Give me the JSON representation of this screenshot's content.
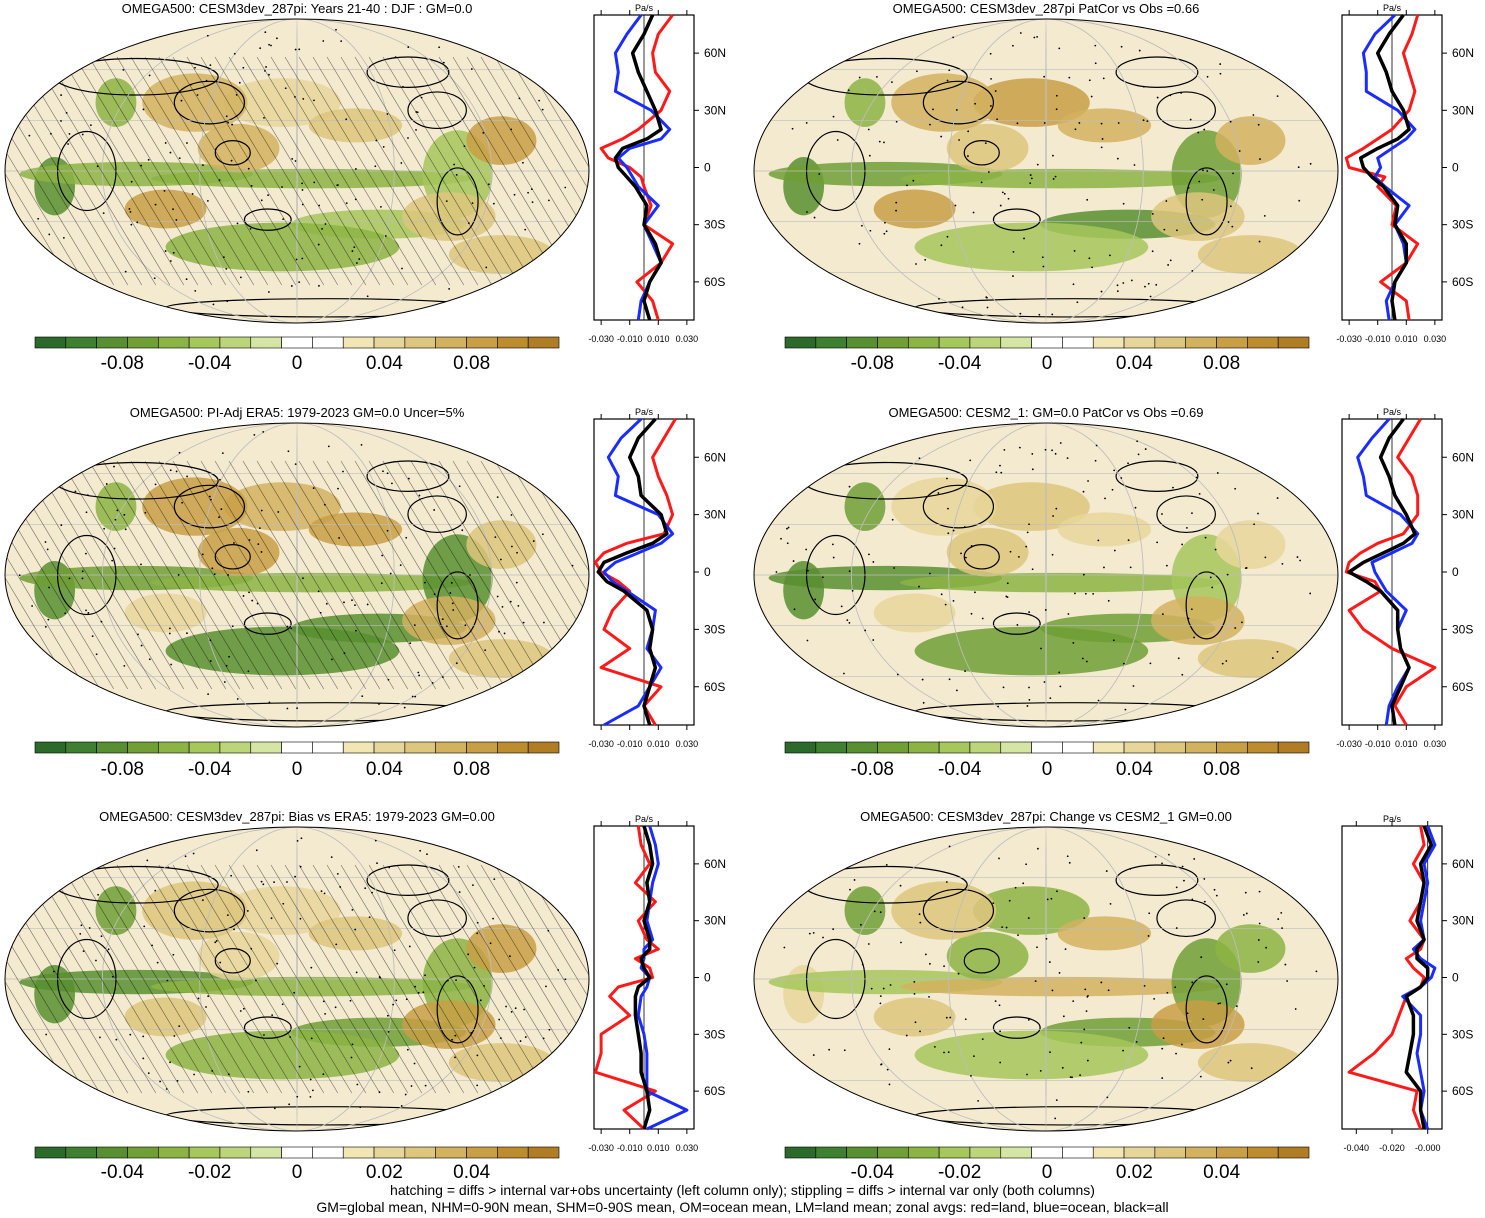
{
  "colors": {
    "land": "#c8c8c8",
    "red": "#ff1a1a",
    "blue": "#1a2cff",
    "black": "#000000",
    "colormap": [
      "#2b6a2b",
      "#3e7f30",
      "#588f30",
      "#6f9f35",
      "#8cb444",
      "#a6c75c",
      "#bcd57a",
      "#d5e6a4",
      "#ffffff",
      "#ffffff",
      "#f1e6b4",
      "#e7d69a",
      "#ddc67d",
      "#d2b25f",
      "#c89f45",
      "#bd8c2f",
      "#b07d25"
    ]
  },
  "footer": {
    "line1": "hatching = diffs > internal var+obs uncertainty (left column only); stippling = diffs > internal var only (both columns)",
    "line2": "GM=global mean, NHM=0-90N mean, SHM=0-90S mean, OM=ocean mean, LM=land mean; zonal avgs: red=land, blue=ocean, black=all"
  },
  "chart_data": [
    {
      "type": "heatmap",
      "title": "OMEGA500: CESM3dev_287pi: Years 21-40 : DJF : GM=0.0",
      "colorbar_ticks": [
        "-0.08",
        "-0.04",
        "0",
        "0.04",
        "0.08"
      ],
      "colorbar_range": [
        -0.12,
        0.12
      ],
      "hatching": true,
      "zonal_profile": {
        "unit": "Pa/s",
        "x_ticks": [
          "-0.030",
          "-0.010",
          "0.010",
          "0.030"
        ],
        "xlim": [
          -0.035,
          0.035
        ],
        "lat_ticks": [
          "60N",
          "30N",
          "0",
          "30S",
          "60S"
        ],
        "lat": [
          80,
          70,
          60,
          50,
          40,
          30,
          20,
          15,
          10,
          5,
          0,
          -5,
          -10,
          -20,
          -30,
          -40,
          -50,
          -60,
          -70,
          -80
        ],
        "series": [
          {
            "name": "land",
            "values": [
              0.02,
              0.01,
              0.006,
              0.008,
              0.018,
              0.012,
              -0.004,
              -0.015,
              -0.03,
              -0.025,
              -0.01,
              -0.002,
              0.0,
              0.005,
              0.0,
              0.02,
              0.012,
              -0.005,
              0.006,
              0.01
            ]
          },
          {
            "name": "ocean",
            "values": [
              -0.002,
              -0.012,
              -0.02,
              -0.018,
              -0.02,
              0.005,
              0.018,
              0.012,
              -0.01,
              -0.018,
              -0.012,
              -0.008,
              -0.004,
              0.01,
              0.0,
              0.006,
              0.012,
              0.004,
              -0.002,
              -0.004
            ]
          },
          {
            "name": "all",
            "values": [
              0.006,
              0.0,
              -0.008,
              -0.004,
              0.002,
              0.008,
              0.012,
              0.002,
              -0.015,
              -0.02,
              -0.018,
              -0.012,
              -0.006,
              0.002,
              0.0,
              0.008,
              0.012,
              0.004,
              0.0,
              0.004
            ]
          }
        ]
      }
    },
    {
      "type": "heatmap",
      "title": "OMEGA500: CESM3dev_287pi PatCor vs Obs =0.66",
      "colorbar_ticks": [
        "-0.08",
        "-0.04",
        "0",
        "0.04",
        "0.08"
      ],
      "colorbar_range": [
        -0.12,
        0.12
      ],
      "hatching": false,
      "zonal_profile": {
        "unit": "Pa/s",
        "x_ticks": [
          "-0.030",
          "-0.010",
          "0.010",
          "0.030"
        ],
        "xlim": [
          -0.035,
          0.035
        ],
        "lat_ticks": [
          "60N",
          "30N",
          "0",
          "30S",
          "60S"
        ],
        "lat": [
          80,
          70,
          60,
          50,
          40,
          30,
          20,
          15,
          10,
          5,
          0,
          -5,
          -10,
          -20,
          -30,
          -40,
          -50,
          -60,
          -70,
          -80
        ],
        "series": [
          {
            "name": "land",
            "values": [
              0.018,
              0.014,
              0.008,
              0.012,
              0.016,
              0.012,
              0.0,
              -0.01,
              -0.02,
              -0.032,
              -0.03,
              -0.005,
              -0.01,
              0.003,
              0.0,
              0.018,
              0.01,
              -0.008,
              0.01,
              0.012
            ]
          },
          {
            "name": "ocean",
            "values": [
              0.002,
              -0.012,
              -0.02,
              -0.018,
              -0.018,
              0.004,
              0.016,
              0.01,
              0.0,
              -0.01,
              -0.008,
              -0.012,
              -0.005,
              0.012,
              0.002,
              0.008,
              0.01,
              0.002,
              -0.004,
              -0.002
            ]
          },
          {
            "name": "all",
            "values": [
              0.008,
              -0.002,
              -0.01,
              -0.004,
              0.0,
              0.008,
              0.012,
              0.004,
              -0.01,
              -0.022,
              -0.02,
              -0.014,
              -0.006,
              0.004,
              0.002,
              0.01,
              0.01,
              0.002,
              0.0,
              0.002
            ]
          }
        ]
      }
    },
    {
      "type": "heatmap",
      "title": "OMEGA500: PI-Adj ERA5: 1979-2023 GM=0.0 Uncer=5%",
      "colorbar_ticks": [
        "-0.08",
        "-0.04",
        "0",
        "0.04",
        "0.08"
      ],
      "colorbar_range": [
        -0.12,
        0.12
      ],
      "hatching": true,
      "zonal_profile": {
        "unit": "Pa/s",
        "x_ticks": [
          "-0.030",
          "-0.010",
          "0.010",
          "0.030"
        ],
        "xlim": [
          -0.035,
          0.035
        ],
        "lat_ticks": [
          "60N",
          "30N",
          "0",
          "30S",
          "60S"
        ],
        "lat": [
          80,
          70,
          60,
          50,
          40,
          30,
          20,
          15,
          10,
          5,
          0,
          -5,
          -10,
          -20,
          -30,
          -40,
          -50,
          -60,
          -70,
          -80
        ],
        "series": [
          {
            "name": "land",
            "values": [
              0.022,
              0.014,
              0.006,
              0.01,
              0.016,
              0.02,
              0.014,
              -0.012,
              -0.028,
              -0.034,
              -0.03,
              -0.018,
              -0.01,
              -0.022,
              -0.028,
              -0.01,
              -0.03,
              0.012,
              0.0,
              0.008
            ]
          },
          {
            "name": "ocean",
            "values": [
              -0.002,
              -0.016,
              -0.025,
              -0.018,
              -0.02,
              0.01,
              0.02,
              0.012,
              -0.004,
              -0.02,
              -0.028,
              -0.022,
              -0.012,
              0.008,
              0.006,
              0.002,
              0.012,
              0.004,
              -0.004,
              -0.028
            ]
          },
          {
            "name": "all",
            "values": [
              0.008,
              -0.004,
              -0.01,
              -0.004,
              -0.002,
              0.012,
              0.016,
              0.006,
              -0.012,
              -0.028,
              -0.032,
              -0.026,
              -0.014,
              0.002,
              0.006,
              0.004,
              0.008,
              0.004,
              0.0,
              0.004
            ]
          }
        ]
      }
    },
    {
      "type": "heatmap",
      "title": "OMEGA500: CESM2_1: GM=0.0 PatCor vs Obs =0.69",
      "colorbar_ticks": [
        "-0.08",
        "-0.04",
        "0",
        "0.04",
        "0.08"
      ],
      "colorbar_range": [
        -0.12,
        0.12
      ],
      "hatching": false,
      "zonal_profile": {
        "unit": "Pa/s",
        "x_ticks": [
          "-0.030",
          "-0.010",
          "0.010",
          "0.030"
        ],
        "xlim": [
          -0.035,
          0.035
        ],
        "lat_ticks": [
          "60N",
          "30N",
          "0",
          "30S",
          "60S"
        ],
        "lat": [
          80,
          70,
          60,
          50,
          40,
          30,
          20,
          15,
          10,
          5,
          0,
          -5,
          -10,
          -20,
          -30,
          -40,
          -50,
          -60,
          -70,
          -80
        ],
        "series": [
          {
            "name": "land",
            "values": [
              0.02,
              0.012,
              0.004,
              0.014,
              0.018,
              0.018,
              0.008,
              -0.01,
              -0.022,
              -0.03,
              -0.032,
              -0.012,
              -0.008,
              -0.03,
              -0.02,
              0.0,
              0.03,
              0.01,
              0.002,
              0.01
            ]
          },
          {
            "name": "ocean",
            "values": [
              -0.002,
              -0.014,
              -0.024,
              -0.02,
              -0.018,
              0.006,
              0.018,
              0.014,
              0.0,
              -0.014,
              -0.012,
              -0.008,
              -0.004,
              0.01,
              0.004,
              0.006,
              0.012,
              0.004,
              -0.002,
              -0.004
            ]
          },
          {
            "name": "all",
            "values": [
              0.008,
              -0.002,
              -0.008,
              -0.002,
              0.002,
              0.01,
              0.016,
              0.008,
              -0.006,
              -0.02,
              -0.03,
              -0.018,
              -0.008,
              0.004,
              0.004,
              0.006,
              0.012,
              0.006,
              0.0,
              0.002
            ]
          }
        ]
      }
    },
    {
      "type": "heatmap",
      "title": "OMEGA500: CESM3dev_287pi: Bias vs ERA5: 1979-2023 GM=0.00",
      "colorbar_ticks": [
        "-0.04",
        "-0.02",
        "0",
        "0.02",
        "0.04"
      ],
      "colorbar_range": [
        -0.06,
        0.06
      ],
      "hatching": true,
      "zonal_profile": {
        "unit": "Pa/s",
        "x_ticks": [
          "-0.030",
          "-0.010",
          "0.010",
          "0.030"
        ],
        "xlim": [
          -0.035,
          0.035
        ],
        "lat_ticks": [
          "60N",
          "30N",
          "0",
          "30S",
          "60S"
        ],
        "lat": [
          80,
          70,
          60,
          50,
          40,
          30,
          20,
          15,
          10,
          5,
          0,
          -5,
          -10,
          -20,
          -30,
          -40,
          -50,
          -60,
          -70,
          -80
        ],
        "series": [
          {
            "name": "land",
            "values": [
              -0.004,
              -0.002,
              0.004,
              -0.006,
              0.008,
              -0.004,
              0.002,
              0.01,
              -0.006,
              0.004,
              0.006,
              -0.018,
              -0.024,
              -0.01,
              -0.03,
              -0.03,
              -0.034,
              0.008,
              -0.014,
              0.0
            ]
          },
          {
            "name": "ocean",
            "values": [
              0.004,
              0.008,
              0.01,
              0.006,
              0.004,
              0.002,
              0.006,
              0.0,
              0.0,
              -0.002,
              0.004,
              0.002,
              -0.002,
              -0.004,
              0.0,
              0.002,
              0.002,
              0.002,
              0.03,
              0.002
            ]
          },
          {
            "name": "all",
            "values": [
              0.0,
              0.004,
              0.006,
              0.002,
              0.004,
              0.0,
              0.004,
              0.004,
              -0.002,
              0.0,
              0.004,
              -0.004,
              -0.006,
              -0.006,
              -0.004,
              -0.002,
              -0.002,
              0.002,
              0.004,
              0.0
            ]
          }
        ]
      }
    },
    {
      "type": "heatmap",
      "title": "OMEGA500: CESM3dev_287pi: Change vs CESM2_1 GM=0.00",
      "colorbar_ticks": [
        "-0.04",
        "-0.02",
        "0",
        "0.02",
        "0.04"
      ],
      "colorbar_range": [
        -0.06,
        0.06
      ],
      "hatching": false,
      "zonal_profile": {
        "unit": "Pa/s",
        "x_ticks": [
          "-0.040",
          "-0.020",
          "-0.000"
        ],
        "xlim": [
          -0.048,
          0.008
        ],
        "lat_ticks": [
          "60N",
          "30N",
          "0",
          "30S",
          "60S"
        ],
        "lat": [
          80,
          70,
          60,
          50,
          40,
          30,
          20,
          15,
          10,
          5,
          0,
          -5,
          -10,
          -20,
          -30,
          -40,
          -50,
          -60,
          -70,
          -80
        ],
        "series": [
          {
            "name": "land",
            "values": [
              -0.004,
              -0.002,
              -0.008,
              -0.002,
              -0.004,
              -0.01,
              -0.002,
              -0.004,
              -0.012,
              -0.008,
              -0.002,
              -0.004,
              -0.012,
              -0.016,
              -0.02,
              -0.03,
              -0.044,
              -0.006,
              -0.008,
              -0.004
            ]
          },
          {
            "name": "ocean",
            "values": [
              0.0,
              0.004,
              -0.002,
              0.0,
              -0.002,
              -0.004,
              -0.002,
              -0.008,
              -0.004,
              0.004,
              0.002,
              -0.004,
              -0.014,
              -0.004,
              -0.004,
              -0.006,
              -0.004,
              -0.002,
              -0.004,
              0.0
            ]
          },
          {
            "name": "all",
            "values": [
              -0.002,
              0.002,
              -0.004,
              -0.002,
              -0.004,
              -0.006,
              -0.002,
              -0.006,
              -0.006,
              0.0,
              0.0,
              -0.004,
              -0.012,
              -0.008,
              -0.008,
              -0.01,
              -0.012,
              -0.004,
              -0.004,
              -0.002
            ]
          }
        ]
      }
    }
  ]
}
